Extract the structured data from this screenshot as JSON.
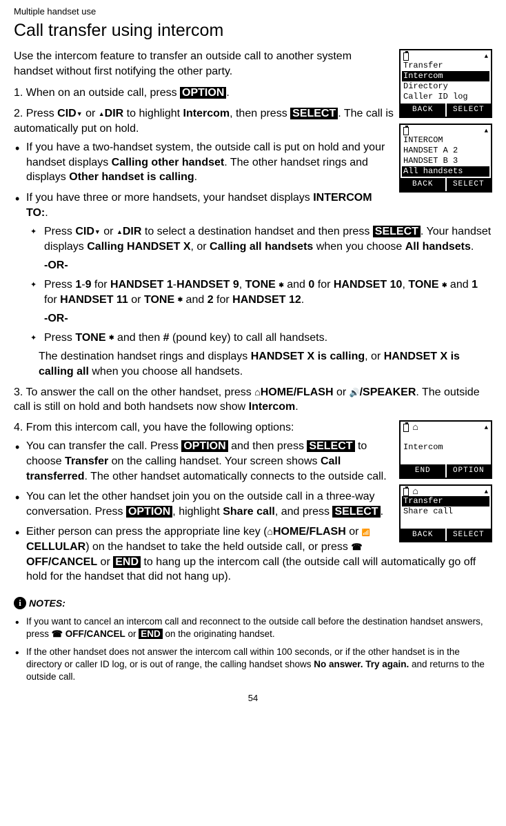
{
  "header": {
    "section": "Multiple handset use",
    "title": "Call transfer using intercom"
  },
  "intro": "Use the intercom feature to transfer an outside call to another system handset without first notifying the other party.",
  "steps": {
    "s1_pre": "When on an outside call, press ",
    "s1_btn": "OPTION",
    "s1_post": ".",
    "s2_a": "Press ",
    "s2_cid": "CID",
    "s2_or": " or ",
    "s2_dir": "DIR",
    "s2_b": " to highlight ",
    "s2_intercom": "Intercom",
    "s2_c": ", then press ",
    "s2_select": "SELECT",
    "s2_d": ". The call is automatically put on hold.",
    "b1_a": "If you have a two-handset system, the outside call is put on hold and your handset displays ",
    "b1_bold1": "Calling other handset",
    "b1_b": ". The other handset rings and displays ",
    "b1_bold2": "Other handset is calling",
    "b1_c": ".",
    "b2_a": "If you have three or more handsets, your handset displays ",
    "b2_bold": "INTERCOM TO:",
    "b2_b": ".",
    "sb1_a": "Press ",
    "sb1_cid": "CID",
    "sb1_or": " or ",
    "sb1_dir": "DIR",
    "sb1_b": " to select a destination handset and then press ",
    "sb1_select": "SELECT",
    "sb1_c": ". Your handset displays ",
    "sb1_bold1": "Calling HANDSET X",
    "sb1_d": ", or ",
    "sb1_bold2": "Calling all handsets",
    "sb1_e": " when you choose ",
    "sb1_bold3": "All handsets",
    "sb1_f": ".",
    "or": "-OR-",
    "sb2_a": "Press ",
    "sb2_19": "1",
    "sb2_dash": "-",
    "sb2_9": "9",
    "sb2_for": " for ",
    "sb2_h1": "HANDSET 1",
    "sb2_h9": "HANDSET 9",
    "sb2_comma": ", ",
    "sb2_tone": "TONE",
    "sb2_and": " and ",
    "sb2_0": "0",
    "sb2_h10": "HANDSET 10",
    "sb2_1": "1",
    "sb2_h11": "HANDSET 11",
    "sb2_or2": " or ",
    "sb2_2": "2",
    "sb2_h12": "HANDSET 12",
    "sb2_period": ".",
    "sb3_a": "Press ",
    "sb3_tone": "TONE",
    "sb3_b": " and then ",
    "sb3_pound": "#",
    "sb3_c": " (pound key) to call all handsets.",
    "dest_a": "The destination handset rings and displays ",
    "dest_b1": "HANDSET X is calling",
    "dest_b": ", or ",
    "dest_b2": "HANDSET X is calling all",
    "dest_c": " when you choose all handsets.",
    "s3_a": "To answer the call on the other handset, press ",
    "s3_home": "HOME/",
    "s3_flash": "FLASH",
    "s3_or": " or ",
    "s3_speaker": "/SPEAKER",
    "s3_b": ". The outside call is still on hold and both handsets now show ",
    "s3_intercom": "Intercom",
    "s3_c": ".",
    "s4": "From this intercom call, you have the following options:",
    "b4a_a": "You can transfer the call. Press ",
    "b4a_opt": "OPTION",
    "b4a_b": " and then press ",
    "b4a_sel": "SELECT",
    "b4a_c": " to choose ",
    "b4a_transfer": "Transfer",
    "b4a_d": " on the calling handset. Your screen shows ",
    "b4a_ct": "Call transferred",
    "b4a_e": ". The other handset automatically connects to the outside call.",
    "b4b_a": "You can let the other handset join you on the outside call in a three-way conversation. Press ",
    "b4b_opt": "OPTION",
    "b4b_b": ", highlight ",
    "b4b_share": "Share call",
    "b4b_c": ", and press ",
    "b4b_sel": "SELECT",
    "b4b_d": ".",
    "b4c_a": "Either person can press the appropriate line key (",
    "b4c_home": "HOME/",
    "b4c_flash": "FLASH",
    "b4c_or": " or ",
    "b4c_cell": "CELLULAR",
    "b4c_b": ") on the handset to take the held outside call, or press ",
    "b4c_off": "OFF/",
    "b4c_cancel": "CANCEL",
    "b4c_or2": " or ",
    "b4c_end": "END",
    "b4c_c": " to hang up the intercom call (the outside call will automatically go off hold for the handset that did not hang up)."
  },
  "notes": {
    "header": "NOTES:",
    "n1_a": "If you want to cancel an intercom call and reconnect to the outside call before the destination handset answers, press ",
    "n1_off": "OFF/",
    "n1_cancel": "CANCEL",
    "n1_or": " or ",
    "n1_end": "END",
    "n1_b": " on the originating handset.",
    "n2_a": "If the other handset does not answer the intercom call within 100 seconds, or if the other handset is in the directory or caller ID log, or is out of range, the calling handset shows ",
    "n2_bold": "No answer. Try again.",
    "n2_b": " and returns to the outside call."
  },
  "screens": {
    "scr1": {
      "l1": "Transfer",
      "l2": "Intercom",
      "l3": "Directory",
      "l4": "Caller ID log",
      "btn1": "BACK",
      "btn2": "SELECT"
    },
    "scr2": {
      "l1": "   INTERCOM",
      "l2": "HANDSET A    2",
      "l3": "HANDSET B    3",
      "l4": "All handsets",
      "btn1": "BACK",
      "btn2": "SELECT"
    },
    "scr3": {
      "l1": "",
      "l2": "Intercom",
      "l3": "",
      "btn1": "END",
      "btn2": "OPTION"
    },
    "scr4": {
      "l1": "Transfer",
      "l2": "Share call",
      "l3": "",
      "btn1": "BACK",
      "btn2": "SELECT"
    }
  },
  "page_number": "54"
}
